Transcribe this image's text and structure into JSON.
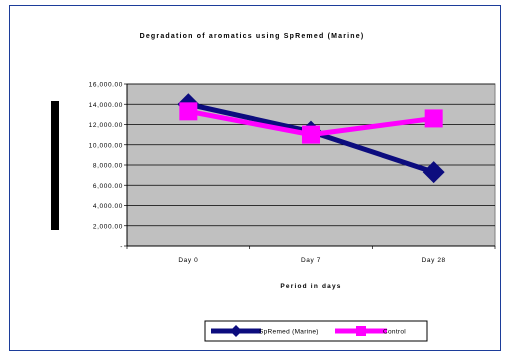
{
  "chart_data": {
    "type": "line",
    "title": "Degradation of aromatics using SpRemed (Marine)",
    "xlabel": "Period in days",
    "ylabel": "",
    "categories": [
      "Day 0",
      "Day 7",
      "Day 28"
    ],
    "ylim": [
      0,
      16000
    ],
    "yticks": [
      0,
      2000,
      4000,
      6000,
      8000,
      10000,
      12000,
      14000,
      16000
    ],
    "ytick_labels": [
      "-",
      "2,000.00",
      "4,000.00",
      "6,000.00",
      "8,000.00",
      "10,000.00",
      "12,000.00",
      "14,000.00",
      "16,000.00"
    ],
    "grid": true,
    "legend_position": "bottom",
    "plot_background": "#c0c0c0",
    "series": [
      {
        "name": "SpRemed (Marine)",
        "values": [
          14000,
          11300,
          7300
        ],
        "color": "#0c0c7e",
        "marker": "diamond"
      },
      {
        "name": "Control",
        "values": [
          13300,
          11000,
          12600
        ],
        "color": "#ff00ff",
        "marker": "square"
      }
    ]
  }
}
